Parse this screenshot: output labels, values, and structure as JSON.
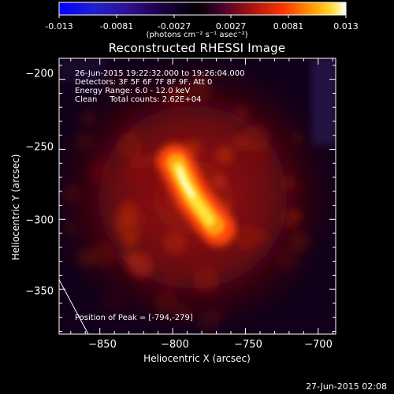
{
  "colorbar": {
    "tick_labels": [
      "-0.013",
      "-0.0081",
      "-0.0027",
      "0.0027",
      "0.0081",
      "0.013"
    ],
    "unit_label": "(photons cm⁻² s⁻¹ asec⁻²)",
    "range": [
      -0.013,
      0.013
    ]
  },
  "title": "Reconstructed RHESSI Image",
  "info": {
    "time_range": "26-Jun-2015 19:22:32.000 to 19:26:04.000",
    "detectors": "Detectors: 3F 5F 6F 7F 8F 9F, Att 0",
    "energy_range": "Energy Range: 6.0 - 12.0 keV",
    "clean_counts": "Clean     Total counts: 2.62E+04"
  },
  "peak_label": "Position of Peak = [-794,-279]",
  "peak_position": [
    -794,
    -279
  ],
  "axes": {
    "x_label": "Heliocentric X (arcsec)",
    "y_label": "Heliocentric Y (arcsec)",
    "x_ticks": [
      -850,
      -800,
      -750,
      -700
    ],
    "y_ticks": [
      -200,
      -250,
      -300,
      -350
    ],
    "x_tick_labels": [
      "−850",
      "−800",
      "−750",
      "−700"
    ],
    "y_tick_labels": [
      "−200",
      "−250",
      "−300",
      "−350"
    ],
    "x_range": [
      -878,
      -688
    ],
    "y_range": [
      -382,
      -185
    ]
  },
  "footer_timestamp": "27-Jun-2015 02:08",
  "colors": {
    "background": "#000000",
    "axes": "#ffffff"
  }
}
